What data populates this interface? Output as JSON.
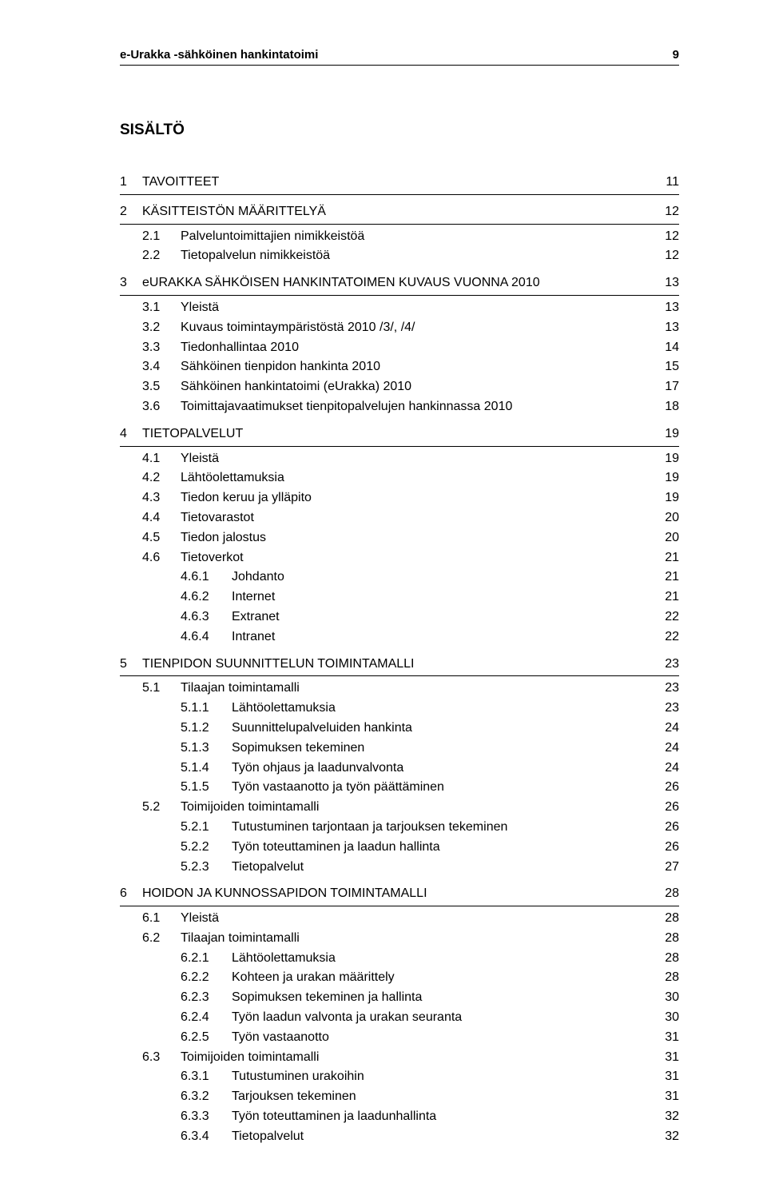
{
  "header": {
    "doc_title": "e-Urakka -sähköinen hankintatoimi",
    "page_number": "9"
  },
  "toc_heading": "SISÄLTÖ",
  "toc": [
    {
      "level": 1,
      "num": "1",
      "label": "TAVOITTEET",
      "page": "11",
      "rule": true
    },
    {
      "level": 1,
      "num": "2",
      "label": "KÄSITTEISTÖN MÄÄRITTELYÄ",
      "page": "12",
      "rule": true
    },
    {
      "level": 2,
      "num": "2.1",
      "label": "Palveluntoimittajien nimikkeistöä",
      "page": "12"
    },
    {
      "level": 2,
      "num": "2.2",
      "label": "Tietopalvelun nimikkeistöä",
      "page": "12"
    },
    {
      "level": 1,
      "num": "3",
      "label": "eURAKKA SÄHKÖISEN HANKINTATOIMEN KUVAUS VUONNA 2010",
      "page": "13",
      "rule": true
    },
    {
      "level": 2,
      "num": "3.1",
      "label": "Yleistä",
      "page": "13"
    },
    {
      "level": 2,
      "num": "3.2",
      "label": "Kuvaus toimintaympäristöstä 2010 /3/, /4/",
      "page": "13"
    },
    {
      "level": 2,
      "num": "3.3",
      "label": "Tiedonhallintaa 2010",
      "page": "14"
    },
    {
      "level": 2,
      "num": "3.4",
      "label": "Sähköinen tienpidon hankinta 2010",
      "page": "15"
    },
    {
      "level": 2,
      "num": "3.5",
      "label": "Sähköinen hankintatoimi (eUrakka) 2010",
      "page": "17"
    },
    {
      "level": 2,
      "num": "3.6",
      "label": "Toimittajavaatimukset tienpitopalvelujen hankinnassa 2010",
      "page": "18"
    },
    {
      "level": 1,
      "num": "4",
      "label": "TIETOPALVELUT",
      "page": "19",
      "rule": true
    },
    {
      "level": 2,
      "num": "4.1",
      "label": "Yleistä",
      "page": "19"
    },
    {
      "level": 2,
      "num": "4.2",
      "label": "Lähtöolettamuksia",
      "page": "19"
    },
    {
      "level": 2,
      "num": "4.3",
      "label": "Tiedon keruu ja ylläpito",
      "page": "19"
    },
    {
      "level": 2,
      "num": "4.4",
      "label": "Tietovarastot",
      "page": "20"
    },
    {
      "level": 2,
      "num": "4.5",
      "label": "Tiedon jalostus",
      "page": "20"
    },
    {
      "level": 2,
      "num": "4.6",
      "label": "Tietoverkot",
      "page": "21"
    },
    {
      "level": 3,
      "num": "4.6.1",
      "label": "Johdanto",
      "page": "21"
    },
    {
      "level": 3,
      "num": "4.6.2",
      "label": "Internet",
      "page": "21"
    },
    {
      "level": 3,
      "num": "4.6.3",
      "label": "Extranet",
      "page": "22"
    },
    {
      "level": 3,
      "num": "4.6.4",
      "label": "Intranet",
      "page": "22"
    },
    {
      "level": 1,
      "num": "5",
      "label": "TIENPIDON SUUNNITTELUN TOIMINTAMALLI",
      "page": "23",
      "rule": true
    },
    {
      "level": 2,
      "num": "5.1",
      "label": "Tilaajan toimintamalli",
      "page": "23"
    },
    {
      "level": 3,
      "num": "5.1.1",
      "label": "Lähtöolettamuksia",
      "page": "23"
    },
    {
      "level": 3,
      "num": "5.1.2",
      "label": "Suunnittelupalveluiden hankinta",
      "page": "24"
    },
    {
      "level": 3,
      "num": "5.1.3",
      "label": "Sopimuksen tekeminen",
      "page": "24"
    },
    {
      "level": 3,
      "num": "5.1.4",
      "label": "Työn ohjaus ja laadunvalvonta",
      "page": "24"
    },
    {
      "level": 3,
      "num": "5.1.5",
      "label": "Työn vastaanotto ja työn päättäminen",
      "page": "26"
    },
    {
      "level": 2,
      "num": "5.2",
      "label": "Toimijoiden toimintamalli",
      "page": "26"
    },
    {
      "level": 3,
      "num": "5.2.1",
      "label": "Tutustuminen tarjontaan ja tarjouksen tekeminen",
      "page": "26"
    },
    {
      "level": 3,
      "num": "5.2.2",
      "label": "Työn toteuttaminen ja laadun hallinta",
      "page": "26"
    },
    {
      "level": 3,
      "num": "5.2.3",
      "label": "Tietopalvelut",
      "page": "27"
    },
    {
      "level": 1,
      "num": "6",
      "label": "HOIDON JA KUNNOSSAPIDON TOIMINTAMALLI",
      "page": "28",
      "rule": true
    },
    {
      "level": 2,
      "num": "6.1",
      "label": "Yleistä",
      "page": "28"
    },
    {
      "level": 2,
      "num": "6.2",
      "label": "Tilaajan toimintamalli",
      "page": "28"
    },
    {
      "level": 3,
      "num": "6.2.1",
      "label": "Lähtöolettamuksia",
      "page": "28"
    },
    {
      "level": 3,
      "num": "6.2.2",
      "label": "Kohteen ja urakan määrittely",
      "page": "28"
    },
    {
      "level": 3,
      "num": "6.2.3",
      "label": "Sopimuksen tekeminen ja hallinta",
      "page": "30"
    },
    {
      "level": 3,
      "num": "6.2.4",
      "label": "Työn laadun valvonta ja urakan seuranta",
      "page": "30"
    },
    {
      "level": 3,
      "num": "6.2.5",
      "label": "Työn vastaanotto",
      "page": "31"
    },
    {
      "level": 2,
      "num": "6.3",
      "label": "Toimijoiden toimintamalli",
      "page": "31"
    },
    {
      "level": 3,
      "num": "6.3.1",
      "label": "Tutustuminen urakoihin",
      "page": "31"
    },
    {
      "level": 3,
      "num": "6.3.2",
      "label": "Tarjouksen tekeminen",
      "page": "31"
    },
    {
      "level": 3,
      "num": "6.3.3",
      "label": "Työn toteuttaminen ja laadunhallinta",
      "page": "32"
    },
    {
      "level": 3,
      "num": "6.3.4",
      "label": "Tietopalvelut",
      "page": "32"
    }
  ]
}
